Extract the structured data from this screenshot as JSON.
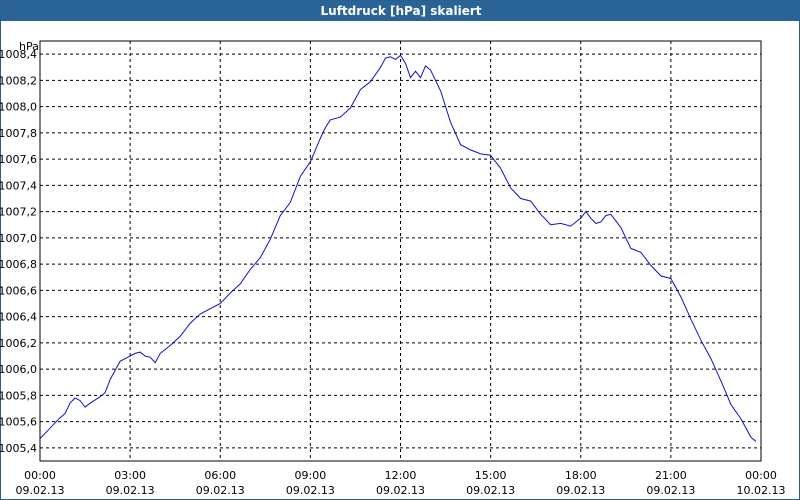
{
  "window": {
    "title": "Luftdruck [hPa] skaliert"
  },
  "chart_data": {
    "type": "line",
    "title": "Luftdruck [hPa] skaliert",
    "ylabel": "hPa",
    "xlabel": "",
    "ylim": [
      1005.4,
      1008.5
    ],
    "xlim_hours": [
      0,
      24
    ],
    "grid": true,
    "line_color": "#1010c8",
    "y_ticks": [
      "1005,4",
      "1005,6",
      "1005,8",
      "1006,0",
      "1006,2",
      "1006,4",
      "1006,6",
      "1006,8",
      "1007,0",
      "1007,2",
      "1007,4",
      "1007,6",
      "1007,8",
      "1008,0",
      "1008,2",
      "1008,4"
    ],
    "x_ticks": [
      {
        "time": "00:00",
        "date": "09.02.13"
      },
      {
        "time": "03:00",
        "date": "09.02.13"
      },
      {
        "time": "06:00",
        "date": "09.02.13"
      },
      {
        "time": "09:00",
        "date": "09.02.13"
      },
      {
        "time": "12:00",
        "date": "09.02.13"
      },
      {
        "time": "15:00",
        "date": "09.02.13"
      },
      {
        "time": "18:00",
        "date": "09.02.13"
      },
      {
        "time": "21:00",
        "date": "09.02.13"
      },
      {
        "time": "00:00",
        "date": "10.02.13"
      }
    ],
    "series": [
      {
        "x": [
          "09.02.13 00:00",
          "09.02.13 00:20",
          "09.02.13 00:40",
          "09.02.13 00:50",
          "09.02.13 01:00",
          "09.02.13 01:10",
          "09.02.13 01:20",
          "09.02.13 01:30",
          "09.02.13 01:40",
          "09.02.13 02:00",
          "09.02.13 02:10",
          "09.02.13 02:20",
          "09.02.13 02:40",
          "09.02.13 03:00",
          "09.02.13 03:10",
          "09.02.13 03:20",
          "09.02.13 03:30",
          "09.02.13 03:40",
          "09.02.13 03:50",
          "09.02.13 04:00",
          "09.02.13 04:20",
          "09.02.13 04:40",
          "09.02.13 05:00",
          "09.02.13 05:20",
          "09.02.13 05:40",
          "09.02.13 06:00",
          "09.02.13 06:20",
          "09.02.13 06:40",
          "09.02.13 07:00",
          "09.02.13 07:20",
          "09.02.13 07:40",
          "09.02.13 08:00",
          "09.02.13 08:20",
          "09.02.13 08:40",
          "09.02.13 09:00",
          "09.02.13 09:10",
          "09.02.13 09:20",
          "09.02.13 09:30",
          "09.02.13 09:40",
          "09.02.13 10:00",
          "09.02.13 10:20",
          "09.02.13 10:40",
          "09.02.13 11:00",
          "09.02.13 11:20",
          "09.02.13 11:30",
          "09.02.13 11:40",
          "09.02.13 11:50",
          "09.02.13 12:00",
          "09.02.13 12:10",
          "09.02.13 12:20",
          "09.02.13 12:30",
          "09.02.13 12:40",
          "09.02.13 12:50",
          "09.02.13 13:00",
          "09.02.13 13:20",
          "09.02.13 13:40",
          "09.02.13 14:00",
          "09.02.13 14:20",
          "09.02.13 14:40",
          "09.02.13 15:00",
          "09.02.13 15:20",
          "09.02.13 15:40",
          "09.02.13 16:00",
          "09.02.13 16:20",
          "09.02.13 16:40",
          "09.02.13 17:00",
          "09.02.13 17:20",
          "09.02.13 17:40",
          "09.02.13 18:00",
          "09.02.13 18:10",
          "09.02.13 18:20",
          "09.02.13 18:30",
          "09.02.13 18:40",
          "09.02.13 18:50",
          "09.02.13 19:00",
          "09.02.13 19:20",
          "09.02.13 19:40",
          "09.02.13 20:00",
          "09.02.13 20:20",
          "09.02.13 20:40",
          "09.02.13 21:00",
          "09.02.13 21:20",
          "09.02.13 21:40",
          "09.02.13 22:00",
          "09.02.13 22:20",
          "09.02.13 22:40",
          "09.02.13 23:00",
          "09.02.13 23:20",
          "09.02.13 23:40",
          "09.02.13 23:50"
        ],
        "y": [
          1005.47,
          1005.55,
          1005.63,
          1005.66,
          1005.74,
          1005.78,
          1005.76,
          1005.71,
          1005.74,
          1005.79,
          1005.82,
          1005.92,
          1006.06,
          1006.1,
          1006.12,
          1006.13,
          1006.1,
          1006.09,
          1006.05,
          1006.12,
          1006.18,
          1006.25,
          1006.35,
          1006.42,
          1006.46,
          1006.5,
          1006.58,
          1006.65,
          1006.76,
          1006.85,
          1006.99,
          1007.17,
          1007.27,
          1007.47,
          1007.58,
          1007.67,
          1007.76,
          1007.84,
          1007.9,
          1007.92,
          1007.99,
          1008.13,
          1008.19,
          1008.3,
          1008.37,
          1008.38,
          1008.36,
          1008.39,
          1008.33,
          1008.22,
          1008.27,
          1008.22,
          1008.31,
          1008.28,
          1008.12,
          1007.88,
          1007.71,
          1007.67,
          1007.64,
          1007.63,
          1007.53,
          1007.38,
          1007.3,
          1007.28,
          1007.18,
          1007.1,
          1007.11,
          1007.09,
          1007.15,
          1007.2,
          1007.15,
          1007.11,
          1007.12,
          1007.17,
          1007.18,
          1007.08,
          1006.92,
          1006.89,
          1006.79,
          1006.71,
          1006.69,
          1006.55,
          1006.38,
          1006.22,
          1006.08,
          1005.91,
          1005.73,
          1005.62,
          1005.48,
          1005.45
        ]
      }
    ]
  }
}
